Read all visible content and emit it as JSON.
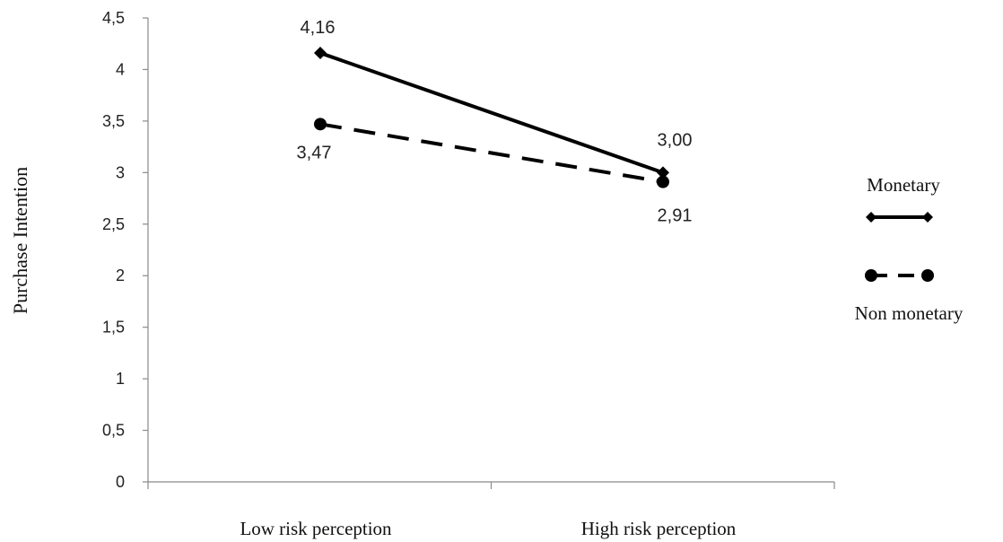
{
  "chart_data": {
    "type": "line",
    "title": "",
    "xlabel": "",
    "ylabel": "Purchase Intention",
    "categories": [
      "Low risk perception",
      "High risk perception"
    ],
    "ylim": [
      0,
      4.5
    ],
    "yticks": [
      0,
      0.5,
      1,
      1.5,
      2,
      2.5,
      3,
      3.5,
      4,
      4.5
    ],
    "ytick_labels": [
      "0",
      "0,5",
      "1",
      "1,5",
      "2",
      "2,5",
      "3",
      "3,5",
      "4",
      "4,5"
    ],
    "grid": false,
    "legend_position": "right",
    "series": [
      {
        "name": "Monetary",
        "values": [
          4.16,
          3.0
        ],
        "labels": [
          "4,16",
          "3,00"
        ],
        "line_style": "solid",
        "marker": "diamond",
        "color": "#000000"
      },
      {
        "name": "Non monetary",
        "values": [
          3.47,
          2.91
        ],
        "labels": [
          "3,47",
          "2,91"
        ],
        "line_style": "dashed",
        "marker": "circle",
        "color": "#000000"
      }
    ]
  }
}
